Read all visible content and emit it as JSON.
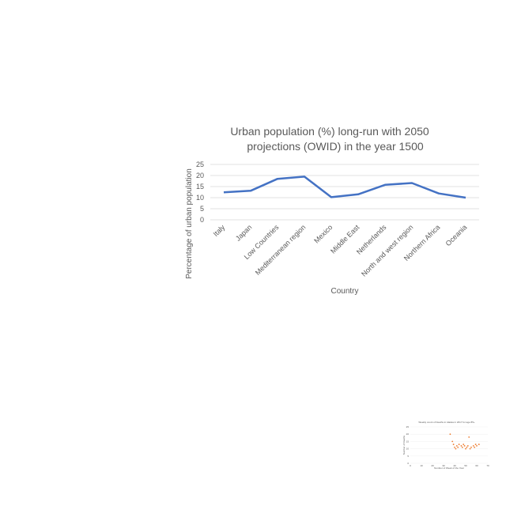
{
  "chart_data": [
    {
      "type": "line",
      "title_lines": [
        "Urban population (%) long-run with 2050",
        "projections (OWID) in the year 1500"
      ],
      "xlabel": "Country",
      "ylabel": "Percentage of urban population",
      "categories": [
        "Italy",
        "Japan",
        "Low Countries",
        "Mediterranean region",
        "Mexico",
        "Middle East",
        "Netherlands",
        "North and west region",
        "Northern Africa",
        "Oceania"
      ],
      "series": [
        {
          "values": [
            12.4,
            13.1,
            18.5,
            19.5,
            10.2,
            11.5,
            15.8,
            16.6,
            11.9,
            10.0
          ],
          "color": "#4472c4"
        }
      ],
      "ylim": [
        0,
        25
      ],
      "yticks": [
        "0",
        "5",
        "10",
        "15",
        "20",
        "25"
      ],
      "grid": true
    },
    {
      "type": "scatter",
      "title": "Weekly count of Deaths in Alaska in 2017 for age 85+",
      "xlabel": "Number of Week of the Year",
      "ylabel": "Number of Deaths",
      "xticks": [
        "0",
        "10",
        "20",
        "30",
        "40",
        "50",
        "60",
        "70"
      ],
      "yticks": [
        "0",
        "5",
        "10",
        "15",
        "20",
        "25"
      ],
      "xlim": [
        0,
        70
      ],
      "ylim": [
        0,
        25
      ],
      "points": [
        [
          36,
          20
        ],
        [
          38,
          15
        ],
        [
          39,
          13
        ],
        [
          40,
          11
        ],
        [
          41,
          10
        ],
        [
          42,
          12
        ],
        [
          43,
          11
        ],
        [
          44,
          13
        ],
        [
          46,
          12
        ],
        [
          47,
          11
        ],
        [
          48,
          13
        ],
        [
          49,
          12
        ],
        [
          50,
          10
        ],
        [
          51,
          11
        ],
        [
          52,
          12
        ],
        [
          53,
          18
        ],
        [
          54,
          10
        ],
        [
          55,
          11
        ],
        [
          57,
          12
        ],
        [
          58,
          11
        ],
        [
          59,
          13
        ],
        [
          60,
          12
        ],
        [
          62,
          13
        ]
      ],
      "color": "#ed7d31"
    }
  ]
}
